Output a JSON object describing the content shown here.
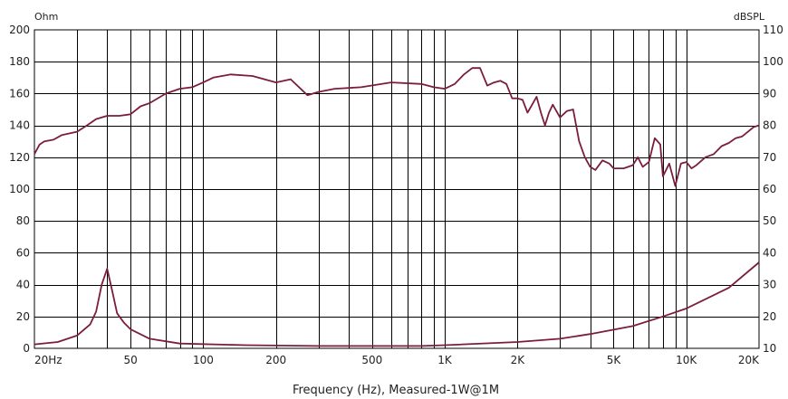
{
  "chart_data": {
    "type": "line",
    "title": "",
    "xlabel": "Frequency (Hz), Measured-1W@1M",
    "y_left_unit": "Ohm",
    "y_right_unit": "dBSPL",
    "x_scale": "log",
    "xlim": [
      20,
      20000
    ],
    "ylim_left": [
      0,
      200
    ],
    "ylim_right": [
      10,
      110
    ],
    "x_ticks": [
      {
        "value": 20,
        "label": "20Hz"
      },
      {
        "value": 50,
        "label": "50"
      },
      {
        "value": 100,
        "label": "100"
      },
      {
        "value": 200,
        "label": "200"
      },
      {
        "value": 500,
        "label": "500"
      },
      {
        "value": 1000,
        "label": "1K"
      },
      {
        "value": 2000,
        "label": "2K"
      },
      {
        "value": 5000,
        "label": "5K"
      },
      {
        "value": 10000,
        "label": "10K"
      },
      {
        "value": 20000,
        "label": "20K"
      }
    ],
    "y_left_ticks": [
      0,
      20,
      40,
      60,
      80,
      100,
      120,
      140,
      160,
      180,
      200
    ],
    "y_right_ticks": [
      10,
      20,
      30,
      40,
      50,
      60,
      70,
      80,
      90,
      100,
      110
    ],
    "grid": true,
    "color": "#7b1d3c",
    "series": [
      {
        "axis": "right",
        "points": [
          [
            20,
            71
          ],
          [
            21,
            74
          ],
          [
            22,
            75
          ],
          [
            24,
            75.5
          ],
          [
            26,
            77
          ],
          [
            28,
            77.5
          ],
          [
            30,
            78
          ],
          [
            33,
            80
          ],
          [
            36,
            82
          ],
          [
            40,
            83
          ],
          [
            45,
            83
          ],
          [
            50,
            83.5
          ],
          [
            55,
            86
          ],
          [
            60,
            87
          ],
          [
            70,
            90
          ],
          [
            80,
            91.5
          ],
          [
            90,
            92
          ],
          [
            100,
            93.5
          ],
          [
            110,
            95
          ],
          [
            130,
            96
          ],
          [
            160,
            95.5
          ],
          [
            200,
            93.5
          ],
          [
            230,
            94.5
          ],
          [
            270,
            89.5
          ],
          [
            300,
            90.5
          ],
          [
            350,
            91.5
          ],
          [
            450,
            92
          ],
          [
            600,
            93.5
          ],
          [
            800,
            93
          ],
          [
            900,
            92
          ],
          [
            1000,
            91.5
          ],
          [
            1100,
            93
          ],
          [
            1200,
            96
          ],
          [
            1300,
            98
          ],
          [
            1400,
            98
          ],
          [
            1500,
            92.5
          ],
          [
            1600,
            93.5
          ],
          [
            1700,
            94
          ],
          [
            1800,
            93
          ],
          [
            1900,
            88.5
          ],
          [
            2000,
            88.5
          ],
          [
            2100,
            88
          ],
          [
            2200,
            84
          ],
          [
            2300,
            86.5
          ],
          [
            2400,
            89
          ],
          [
            2500,
            84
          ],
          [
            2600,
            80
          ],
          [
            2700,
            84
          ],
          [
            2800,
            86.5
          ],
          [
            3000,
            82.5
          ],
          [
            3200,
            84.5
          ],
          [
            3400,
            85
          ],
          [
            3600,
            75
          ],
          [
            3800,
            70
          ],
          [
            4000,
            67
          ],
          [
            4200,
            66
          ],
          [
            4500,
            69
          ],
          [
            4800,
            68
          ],
          [
            5000,
            66.5
          ],
          [
            5500,
            66.5
          ],
          [
            6000,
            67.5
          ],
          [
            6300,
            70
          ],
          [
            6600,
            67
          ],
          [
            7000,
            68.5
          ],
          [
            7400,
            76
          ],
          [
            7800,
            74
          ],
          [
            8000,
            64
          ],
          [
            8500,
            68
          ],
          [
            9000,
            61
          ],
          [
            9500,
            68
          ],
          [
            10000,
            68.5
          ],
          [
            10500,
            66.5
          ],
          [
            11000,
            67.5
          ],
          [
            12000,
            70
          ],
          [
            13000,
            71
          ],
          [
            14000,
            73.5
          ],
          [
            15000,
            74.5
          ],
          [
            16000,
            76
          ],
          [
            17000,
            76.5
          ],
          [
            18000,
            78
          ],
          [
            19000,
            79.5
          ],
          [
            20000,
            80
          ]
        ]
      },
      {
        "axis": "left",
        "points": [
          [
            20,
            2.5
          ],
          [
            25,
            4
          ],
          [
            30,
            8
          ],
          [
            34,
            15
          ],
          [
            36,
            23
          ],
          [
            38,
            40
          ],
          [
            40,
            50
          ],
          [
            42,
            36
          ],
          [
            44,
            22
          ],
          [
            47,
            16
          ],
          [
            50,
            12
          ],
          [
            60,
            6
          ],
          [
            80,
            3
          ],
          [
            150,
            2
          ],
          [
            300,
            1.5
          ],
          [
            500,
            1.5
          ],
          [
            800,
            1.5
          ],
          [
            1000,
            2
          ],
          [
            2000,
            4
          ],
          [
            3000,
            6
          ],
          [
            4000,
            9
          ],
          [
            6000,
            14
          ],
          [
            8000,
            20
          ],
          [
            10000,
            25
          ],
          [
            15000,
            38
          ],
          [
            20000,
            54
          ]
        ]
      }
    ]
  }
}
